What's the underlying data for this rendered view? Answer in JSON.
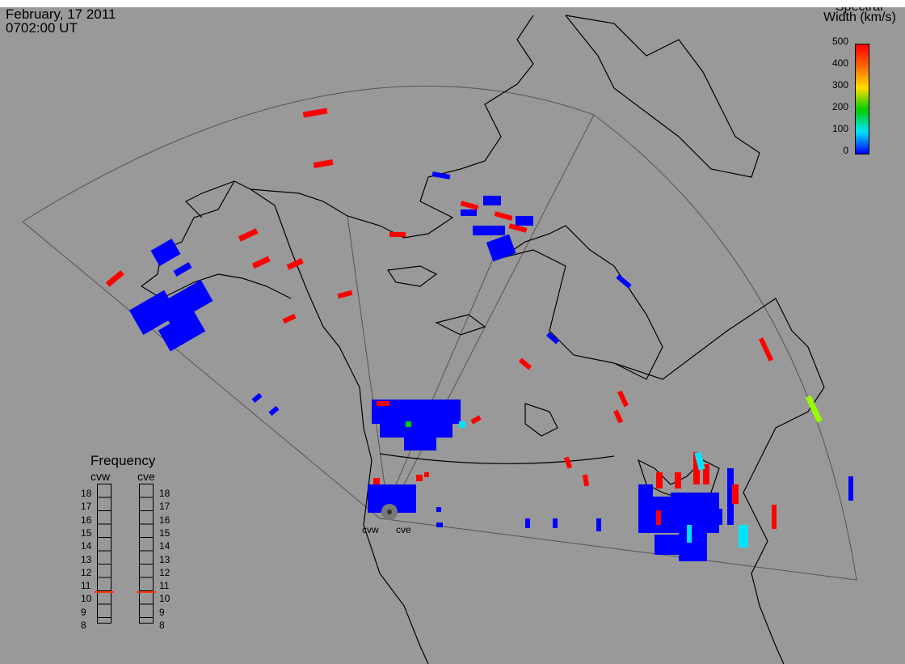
{
  "header": {
    "date": "February, 17 2011",
    "time": "0702:00 UT"
  },
  "colorbar": {
    "title_line1": "Spectral",
    "title_line2": "Width (km/s)",
    "ticks": [
      "500",
      "400",
      "300",
      "200",
      "100",
      "0"
    ],
    "range": [
      0,
      500
    ],
    "colors": [
      "#ff0000",
      "#ff9900",
      "#ffff00",
      "#00cc00",
      "#00e5ff",
      "#0000ff"
    ]
  },
  "frequency_panel": {
    "title": "Frequency",
    "radars": [
      {
        "name": "cvw",
        "selected_mhz": 10.6
      },
      {
        "name": "cve",
        "selected_mhz": 10.6
      }
    ],
    "scale_labels": [
      "18",
      "17",
      "16",
      "15",
      "14",
      "13",
      "12",
      "11",
      "10",
      "9",
      "8"
    ],
    "marker_color": "#ff3300"
  },
  "sites": [
    {
      "name": "cvw"
    },
    {
      "name": "cve"
    }
  ],
  "colors": {
    "background": "#999999",
    "coast": "#000000",
    "low_width": "#0000ff",
    "high_width": "#ff0000"
  }
}
